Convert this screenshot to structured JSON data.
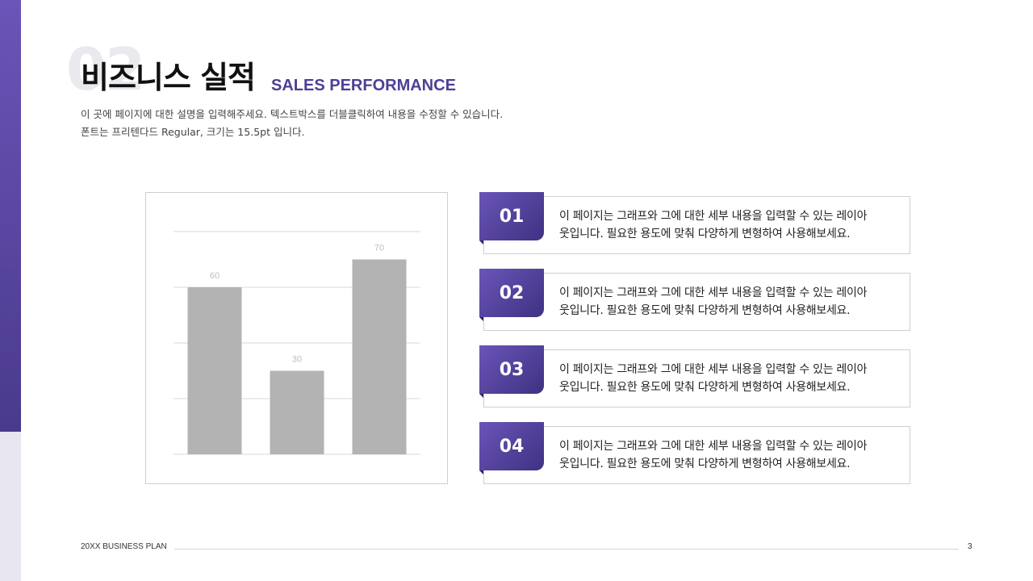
{
  "section": {
    "number": "02"
  },
  "header": {
    "title": "비즈니스 실적",
    "subtitle": "SALES PERFORMANCE",
    "description_lines": [
      "이 곳에 페이지에 대한 설명을 입력해주세요. 텍스트박스를 더블클릭하여 내용을 수정할 수 있습니다.",
      "폰트는 프리텐다드 Regular, 크기는 15.5pt 입니다."
    ]
  },
  "chart_data": {
    "type": "bar",
    "categories": [
      "",
      "",
      ""
    ],
    "values": [
      60,
      30,
      70
    ],
    "ylim": [
      0,
      80
    ],
    "grid": true,
    "bar_color": "#b3b3b3",
    "label_color": "#bdbdbd"
  },
  "cards": [
    {
      "number": "01",
      "lines": [
        "이 페이지는 그래프와 그에 대한 세부 내용을 입력할 수 있는 레이아",
        "웃입니다. 필요한 용도에 맞춰 다양하게 변형하여 사용해보세요."
      ]
    },
    {
      "number": "02",
      "lines": [
        "이 페이지는 그래프와 그에 대한 세부 내용을 입력할 수 있는 레이아",
        "웃입니다. 필요한 용도에 맞춰 다양하게 변형하여 사용해보세요."
      ]
    },
    {
      "number": "03",
      "lines": [
        "이 페이지는 그래프와 그에 대한 세부 내용을 입력할 수 있는 레이아",
        "웃입니다. 필요한 용도에 맞춰 다양하게 변형하여 사용해보세요."
      ]
    },
    {
      "number": "04",
      "lines": [
        "이 페이지는 그래프와 그에 대한 세부 내용을 입력할 수 있는 레이아",
        "웃입니다. 필요한 용도에 맞춰 다양하게 변형하여 사용해보세요."
      ]
    }
  ],
  "footer": {
    "label": "20XX BUSINESS PLAN",
    "page": "3"
  },
  "colors": {
    "accent": "#4d3f95",
    "accent_light": "#6a55b8",
    "side_lower": "#e7e5ef"
  }
}
